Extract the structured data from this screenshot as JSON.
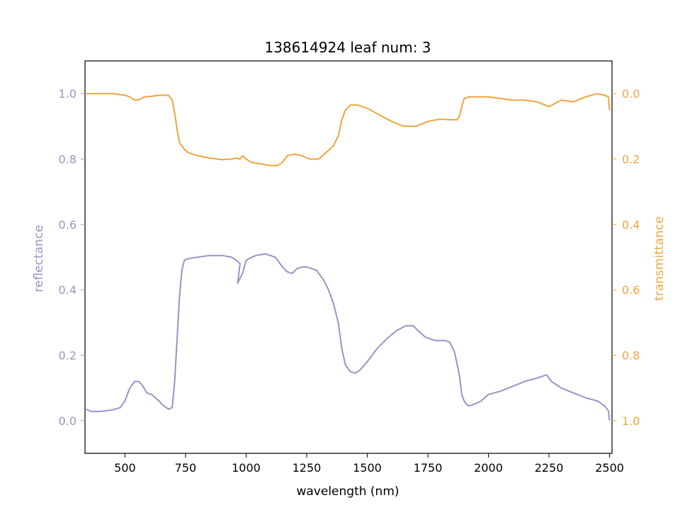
{
  "chart_data": {
    "type": "line",
    "title": "138614924 leaf num: 3",
    "xlabel": "wavelength (nm)",
    "ylabel_left": "reflectance",
    "ylabel_right": "transmittance",
    "xlim": [
      335,
      2510
    ],
    "ylim_left": [
      -0.1,
      1.1
    ],
    "ylim_right_inverted": [
      1.1,
      -0.1
    ],
    "x_ticks": [
      500,
      750,
      1000,
      1250,
      1500,
      1750,
      2000,
      2250,
      2500
    ],
    "x_tick_labels": [
      "500",
      "750",
      "1000",
      "1250",
      "1500",
      "1750",
      "2000",
      "2250",
      "2500"
    ],
    "y_left_ticks": [
      0.0,
      0.2,
      0.4,
      0.6,
      0.8,
      1.0
    ],
    "y_left_tick_labels": [
      "0.0",
      "0.2",
      "0.4",
      "0.6",
      "0.8",
      "1.0"
    ],
    "y_right_ticks": [
      0.0,
      0.2,
      0.4,
      0.6,
      0.8,
      1.0
    ],
    "y_right_tick_labels": [
      "0.0",
      "0.2",
      "0.4",
      "0.6",
      "0.8",
      "1.0"
    ],
    "grid": false,
    "legend": "none",
    "colors": {
      "reflectance": "#9a94c6",
      "transmittance": "#f0a43c"
    },
    "series": [
      {
        "axis": "left",
        "x": [
          340,
          360,
          400,
          450,
          480,
          500,
          520,
          540,
          555,
          570,
          590,
          610,
          640,
          660,
          680,
          695,
          705,
          715,
          725,
          735,
          745,
          760,
          800,
          850,
          900,
          940,
          960,
          975,
          965,
          985,
          1000,
          1010,
          1040,
          1080,
          1120,
          1150,
          1170,
          1190,
          1210,
          1230,
          1250,
          1290,
          1320,
          1340,
          1360,
          1380,
          1395,
          1410,
          1430,
          1450,
          1470,
          1500,
          1540,
          1580,
          1620,
          1660,
          1690,
          1710,
          1740,
          1780,
          1820,
          1840,
          1860,
          1880,
          1890,
          1900,
          1910,
          1920,
          1940,
          1970,
          2000,
          2050,
          2100,
          2150,
          2200,
          2240,
          2260,
          2300,
          2350,
          2400,
          2450,
          2480,
          2495,
          2500
        ],
        "y": [
          0.035,
          0.028,
          0.028,
          0.033,
          0.04,
          0.06,
          0.1,
          0.12,
          0.12,
          0.11,
          0.085,
          0.08,
          0.06,
          0.045,
          0.035,
          0.04,
          0.12,
          0.25,
          0.38,
          0.46,
          0.49,
          0.495,
          0.5,
          0.505,
          0.505,
          0.5,
          0.49,
          0.48,
          0.42,
          0.45,
          0.49,
          0.495,
          0.505,
          0.51,
          0.5,
          0.47,
          0.455,
          0.45,
          0.465,
          0.47,
          0.47,
          0.46,
          0.43,
          0.4,
          0.36,
          0.3,
          0.22,
          0.17,
          0.15,
          0.145,
          0.155,
          0.18,
          0.22,
          0.25,
          0.275,
          0.29,
          0.29,
          0.275,
          0.255,
          0.245,
          0.245,
          0.24,
          0.21,
          0.14,
          0.08,
          0.06,
          0.05,
          0.045,
          0.05,
          0.06,
          0.08,
          0.09,
          0.105,
          0.12,
          0.13,
          0.14,
          0.12,
          0.1,
          0.085,
          0.07,
          0.06,
          0.045,
          0.03,
          0.0
        ]
      },
      {
        "axis": "right",
        "x": [
          340,
          360,
          400,
          450,
          480,
          500,
          520,
          540,
          560,
          580,
          610,
          640,
          680,
          695,
          705,
          715,
          725,
          735,
          745,
          760,
          800,
          850,
          900,
          940,
          960,
          975,
          985,
          1000,
          1020,
          1060,
          1100,
          1130,
          1150,
          1170,
          1200,
          1230,
          1260,
          1300,
          1330,
          1360,
          1380,
          1395,
          1410,
          1430,
          1460,
          1500,
          1550,
          1600,
          1650,
          1700,
          1750,
          1800,
          1850,
          1870,
          1880,
          1890,
          1900,
          1920,
          1950,
          2000,
          2050,
          2100,
          2150,
          2200,
          2250,
          2300,
          2350,
          2400,
          2450,
          2480,
          2495,
          2500
        ],
        "y": [
          0.0,
          0.0,
          0.0,
          0.0,
          0.003,
          0.005,
          0.01,
          0.02,
          0.018,
          0.01,
          0.008,
          0.005,
          0.005,
          0.02,
          0.06,
          0.11,
          0.15,
          0.16,
          0.17,
          0.18,
          0.19,
          0.197,
          0.202,
          0.2,
          0.197,
          0.2,
          0.19,
          0.2,
          0.21,
          0.215,
          0.22,
          0.22,
          0.21,
          0.19,
          0.185,
          0.19,
          0.2,
          0.2,
          0.18,
          0.16,
          0.13,
          0.08,
          0.05,
          0.035,
          0.035,
          0.045,
          0.065,
          0.085,
          0.1,
          0.1,
          0.085,
          0.078,
          0.08,
          0.08,
          0.07,
          0.04,
          0.015,
          0.01,
          0.01,
          0.01,
          0.015,
          0.02,
          0.02,
          0.025,
          0.04,
          0.02,
          0.025,
          0.01,
          0.0,
          0.005,
          0.01,
          0.05
        ]
      }
    ]
  }
}
